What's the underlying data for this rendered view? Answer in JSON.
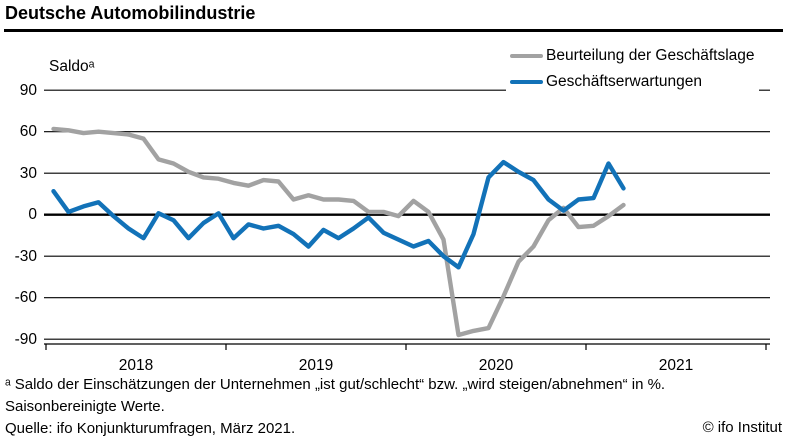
{
  "title": "Deutsche Automobilindustrie",
  "axis_unit_label": "Saldoᵃ",
  "legend": [
    {
      "label": "Beurteilung der Geschäftslage",
      "color": "#a2a2a2"
    },
    {
      "label": "Geschäftserwartungen",
      "color": "#1272b8"
    }
  ],
  "y_ticks": [
    90,
    60,
    30,
    0,
    -30,
    -60,
    -90
  ],
  "x_ticks": [
    "2018",
    "2019",
    "2020",
    "2021"
  ],
  "footnotes": [
    "ᵃ Saldo der Einschätzungen der Unternehmen „ist gut/schlecht“ bzw. „wird steigen/abnehmen“ in %.",
    "Saisonbereinigte Werte.",
    "Quelle: ifo Konjunkturumfragen, März 2021."
  ],
  "copyright": "© ifo Institut",
  "chart_data": {
    "type": "line",
    "title": "Deutsche Automobilindustrie",
    "ylabel": "Saldo",
    "ylim": [
      -90,
      90
    ],
    "grid": true,
    "legend_position": "top-right",
    "x": [
      "2018-01",
      "2018-02",
      "2018-03",
      "2018-04",
      "2018-05",
      "2018-06",
      "2018-07",
      "2018-08",
      "2018-09",
      "2018-10",
      "2018-11",
      "2018-12",
      "2019-01",
      "2019-02",
      "2019-03",
      "2019-04",
      "2019-05",
      "2019-06",
      "2019-07",
      "2019-08",
      "2019-09",
      "2019-10",
      "2019-11",
      "2019-12",
      "2020-01",
      "2020-02",
      "2020-03",
      "2020-04",
      "2020-05",
      "2020-06",
      "2020-07",
      "2020-08",
      "2020-09",
      "2020-10",
      "2020-11",
      "2020-12",
      "2021-01",
      "2021-02",
      "2021-03"
    ],
    "series": [
      {
        "name": "Beurteilung der Geschäftslage",
        "color": "#a2a2a2",
        "values": [
          62,
          61,
          59,
          60,
          59,
          58,
          55,
          40,
          37,
          31,
          27,
          26,
          23,
          21,
          25,
          24,
          11,
          14,
          11,
          11,
          10,
          2,
          2,
          -1,
          10,
          2,
          -18,
          -87,
          -84,
          -82,
          -59,
          -34,
          -23,
          -4,
          5,
          -9,
          -8,
          -1,
          7
        ]
      },
      {
        "name": "Geschäftserwartungen",
        "color": "#1272b8",
        "values": [
          17,
          2,
          6,
          9,
          -1,
          -10,
          -17,
          1,
          -4,
          -17,
          -6,
          1,
          -17,
          -7,
          -10,
          -8,
          -14,
          -23,
          -11,
          -17,
          -10,
          -2,
          -13,
          -18,
          -23,
          -19,
          -30,
          -38,
          -14,
          27,
          38,
          31,
          25,
          11,
          3,
          11,
          12,
          37,
          19
        ]
      }
    ]
  }
}
